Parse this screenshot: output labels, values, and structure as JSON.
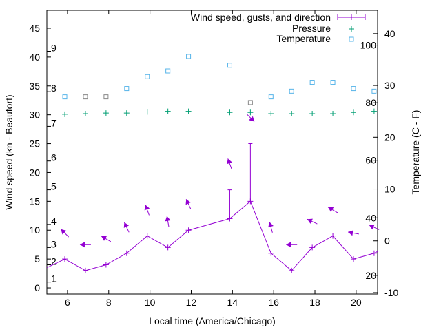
{
  "chart_data": {
    "type": "line",
    "title": "",
    "xlabel": "Local time (America/Chicago)",
    "ylabel": "Wind speed (kn - Beaufort)",
    "y2label": "Temperature (C - F)",
    "xlim": [
      5.0,
      21.04
    ],
    "ylim": [
      -1.07,
      48.1
    ],
    "y2lim": [
      -10.27,
      44.5
    ],
    "grid": false,
    "legend_position": "top-right",
    "x_ticks": [
      6,
      8,
      10,
      12,
      14,
      16,
      18,
      20
    ],
    "y_ticks": [
      0,
      5,
      10,
      15,
      20,
      25,
      30,
      35,
      40,
      45
    ],
    "y2_ticks": [
      -10,
      0,
      10,
      20,
      30,
      40
    ],
    "fahrenheit_labels": [
      20,
      40,
      60,
      80,
      100
    ],
    "beaufort_labels": [
      {
        "label": "1",
        "knots": 1
      },
      {
        "label": "2",
        "knots": 4
      },
      {
        "label": "3",
        "knots": 7
      },
      {
        "label": "4",
        "knots": 11
      },
      {
        "label": "5",
        "knots": 17
      },
      {
        "label": "6",
        "knots": 22
      },
      {
        "label": "7",
        "knots": 28
      },
      {
        "label": "8",
        "knots": 34
      },
      {
        "label": "9",
        "knots": 41
      }
    ],
    "x": [
      5.87,
      6.87,
      7.87,
      8.87,
      9.87,
      10.87,
      11.87,
      13.87,
      14.87,
      15.87,
      16.87,
      17.87,
      18.87,
      19.87,
      20.87
    ],
    "series": [
      {
        "name": "Wind speed, gusts, and direction",
        "color": "#9400d3",
        "axis": "y",
        "values": [
          5,
          3,
          4,
          6,
          9,
          7,
          10,
          12,
          15,
          6,
          3,
          7,
          9,
          5,
          6
        ],
        "gusts": [
          null,
          null,
          null,
          null,
          null,
          null,
          null,
          17,
          25,
          null,
          null,
          null,
          null,
          null,
          null
        ],
        "direction_from_deg": [
          135,
          90,
          120,
          155,
          160,
          170,
          155,
          160,
          315,
          165,
          90,
          115,
          120,
          100,
          115
        ]
      },
      {
        "name": "Pressure",
        "color": "#009e73",
        "axis": "y",
        "values": [
          30.1,
          30.2,
          30.3,
          30.3,
          30.5,
          30.6,
          30.6,
          30.4,
          30.4,
          30.2,
          30.2,
          30.2,
          30.2,
          30.4,
          30.6
        ]
      },
      {
        "name": "Temperature",
        "color": "#56b4e9",
        "axis": "y2",
        "values": [
          27.8,
          27.8,
          27.8,
          29.4,
          31.7,
          32.8,
          35.6,
          33.9,
          26.7,
          27.8,
          28.9,
          30.6,
          30.6,
          29.4,
          28.9
        ]
      }
    ]
  }
}
